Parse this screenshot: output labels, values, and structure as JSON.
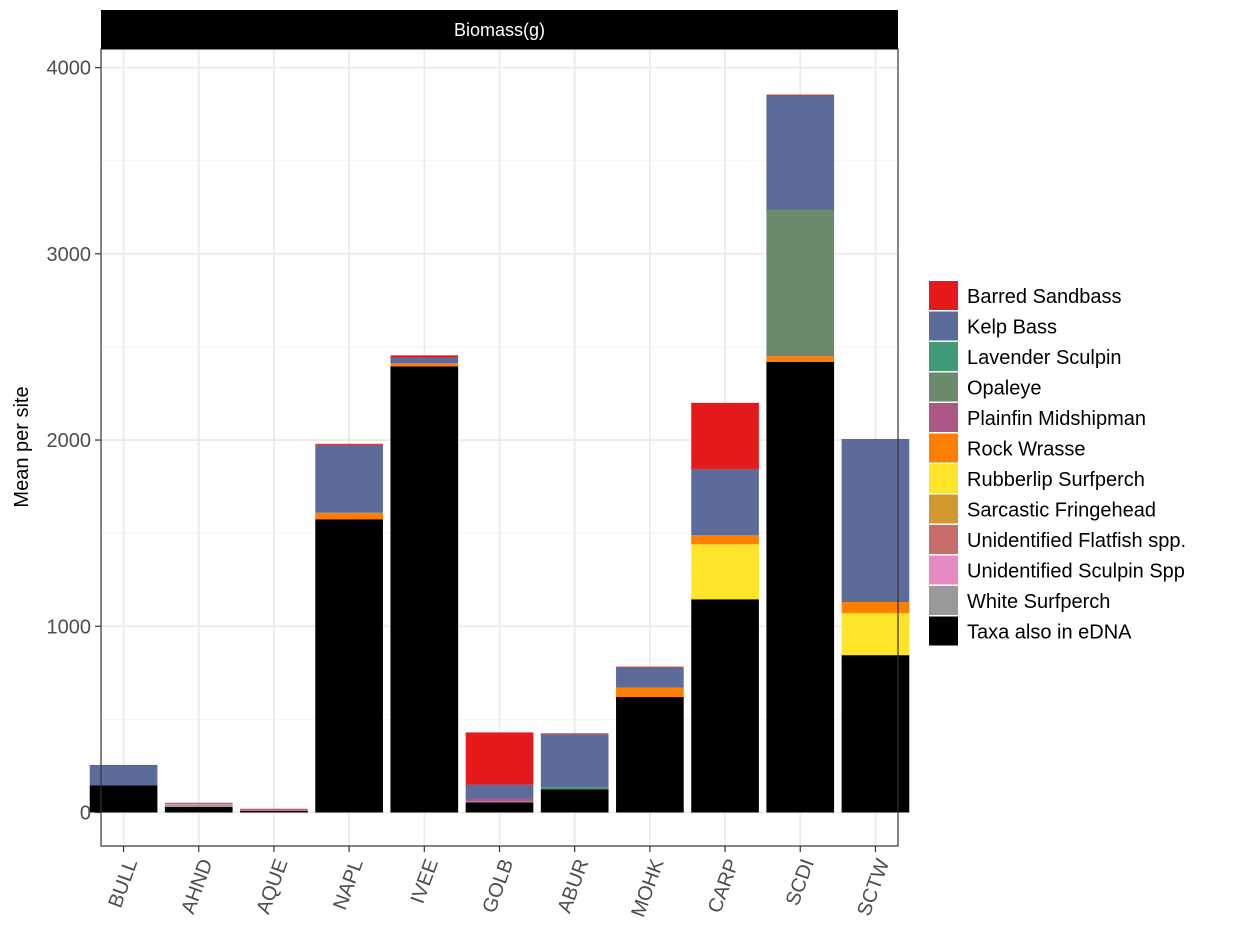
{
  "chart_data": {
    "type": "bar",
    "stacked": true,
    "facet_title": "Biomass(g)",
    "ylabel": "Mean per site",
    "xlabel": "",
    "ylim": [
      -180,
      4100
    ],
    "y_ticks": [
      0,
      1000,
      2000,
      3000,
      4000
    ],
    "grid": true,
    "legend_position": "right",
    "categories": [
      "BULL",
      "AHND",
      "AQUE",
      "NAPL",
      "IVEE",
      "GOLB",
      "ABUR",
      "MOHK",
      "CARP",
      "SCDI",
      "SCTW"
    ],
    "series": [
      {
        "name": "Taxa also in eDNA",
        "color": "#000000",
        "values": [
          145,
          30,
          10,
          1575,
          2395,
          55,
          125,
          620,
          1145,
          2420,
          845
        ]
      },
      {
        "name": "White Surfperch",
        "color": "#999999",
        "values": [
          0,
          12,
          0,
          0,
          0,
          0,
          0,
          0,
          0,
          0,
          0
        ]
      },
      {
        "name": "Unidentified Sculpin Spp",
        "color": "#E78AC3",
        "values": [
          0,
          3,
          2,
          0,
          0,
          3,
          0,
          0,
          0,
          0,
          0
        ]
      },
      {
        "name": "Unidentified Flatfish spp.",
        "color": "#C86B6B",
        "values": [
          0,
          5,
          6,
          0,
          0,
          0,
          0,
          0,
          0,
          0,
          0
        ]
      },
      {
        "name": "Sarcastic Fringehead",
        "color": "#D1992F",
        "values": [
          0,
          0,
          0,
          0,
          0,
          0,
          0,
          0,
          0,
          0,
          0
        ]
      },
      {
        "name": "Rubberlip Surfperch",
        "color": "#FFE52A",
        "values": [
          0,
          0,
          0,
          0,
          0,
          0,
          0,
          0,
          295,
          0,
          225
        ]
      },
      {
        "name": "Rock Wrasse",
        "color": "#FF7F00",
        "values": [
          0,
          0,
          0,
          35,
          18,
          0,
          0,
          50,
          50,
          30,
          60
        ]
      },
      {
        "name": "Plainfin Midshipman",
        "color": "#AB5886",
        "values": [
          0,
          0,
          0,
          0,
          0,
          17,
          0,
          0,
          0,
          0,
          0
        ]
      },
      {
        "name": "Opaleye",
        "color": "#6B8A6B",
        "values": [
          0,
          0,
          0,
          0,
          0,
          0,
          0,
          0,
          0,
          785,
          0
        ]
      },
      {
        "name": "Lavender Sculpin",
        "color": "#3F9A77",
        "values": [
          0,
          0,
          0,
          0,
          0,
          0,
          10,
          0,
          0,
          0,
          0
        ]
      },
      {
        "name": "Kelp Bass",
        "color": "#5C6B9A",
        "values": [
          108,
          0,
          0,
          365,
          30,
          75,
          285,
          108,
          355,
          615,
          870
        ]
      },
      {
        "name": "Barred Sandbass",
        "color": "#E41A1C",
        "values": [
          2,
          2,
          2,
          5,
          12,
          280,
          5,
          5,
          355,
          5,
          5
        ]
      }
    ],
    "legend_order": [
      "Barred Sandbass",
      "Kelp Bass",
      "Lavender Sculpin",
      "Opaleye",
      "Plainfin Midshipman",
      "Rock Wrasse",
      "Rubberlip Surfperch",
      "Sarcastic Fringehead",
      "Unidentified Flatfish spp.",
      "Unidentified Sculpin Spp",
      "White Surfperch",
      "Taxa also in eDNA"
    ]
  }
}
